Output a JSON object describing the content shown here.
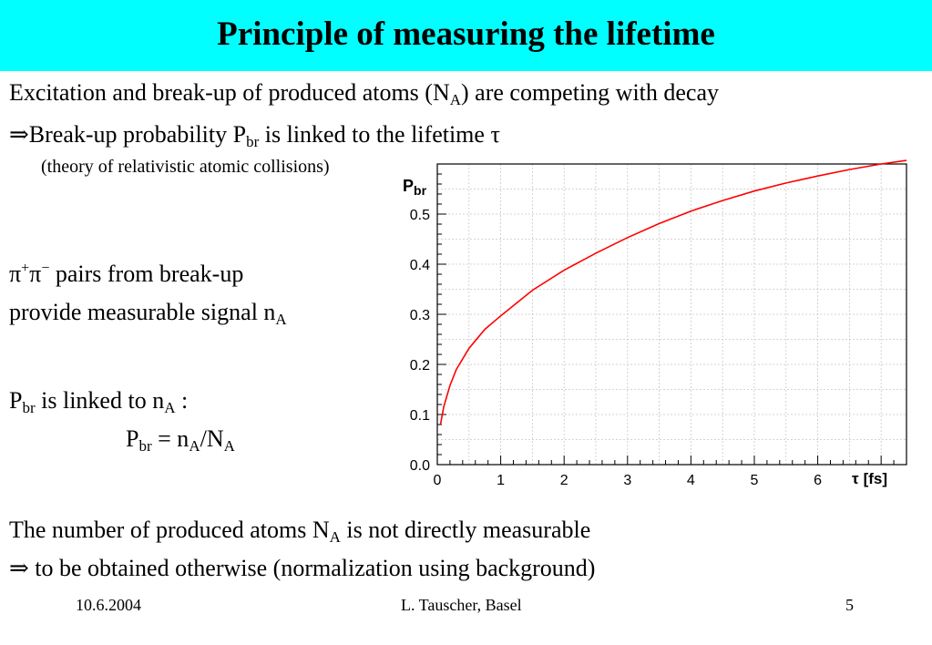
{
  "slide": {
    "title": "Principle of measuring the lifetime",
    "line1": {
      "a": "Excitation and break-up of produced atoms (N",
      "sub": "A",
      "b": ") are competing with decay"
    },
    "line2": {
      "arrow": "⇒",
      "a": "Break-up probability P",
      "sub": "br",
      "b": " is linked to the lifetime ",
      "tau": "τ"
    },
    "line3": "(theory of relativistic atomic collisions)",
    "line4": {
      "pi1": "π",
      "sup1": "+",
      "pi2": "π",
      "sup2": "−",
      "b": " pairs from break-up"
    },
    "line5": {
      "a": "provide measurable signal n",
      "sub": "A"
    },
    "line6": {
      "a": "P",
      "sub1": "br",
      "b": " is linked to n",
      "sub2": "A",
      "c": " :"
    },
    "line7": {
      "a": "P",
      "sub1": "br",
      "b": " = n",
      "sub2": "A",
      "c": "/N",
      "sub3": "A"
    },
    "line8": {
      "a": "The number of produced atoms N",
      "sub": "A",
      "b": " is not directly measurable"
    },
    "line9": {
      "arrow": "⇒",
      "a": " to be obtained otherwise (normalization using background)"
    }
  },
  "footer": {
    "date": "10.6.2004",
    "author": "L. Tauscher, Basel",
    "page": "5"
  },
  "chart_data": {
    "type": "line",
    "ylabel_main": "P",
    "ylabel_sub": "br",
    "xlabel_symbol": "τ",
    "xlabel_unit": "[fs]",
    "xlim": [
      0,
      7.4
    ],
    "ylim": [
      0,
      0.6
    ],
    "xticks": [
      "0",
      "1",
      "2",
      "3",
      "4",
      "5",
      "6"
    ],
    "yticks": [
      "0.0",
      "0.1",
      "0.2",
      "0.3",
      "0.4",
      "0.5"
    ],
    "grid": true,
    "line_color": "#ff0000",
    "series": [
      {
        "x": [
          0.05,
          0.1,
          0.2,
          0.3,
          0.5,
          0.75,
          1.0,
          1.5,
          2.0,
          2.5,
          3.0,
          3.5,
          4.0,
          4.5,
          5.0,
          5.5,
          6.0,
          6.5,
          7.0,
          7.4
        ],
        "y": [
          0.08,
          0.115,
          0.158,
          0.19,
          0.232,
          0.27,
          0.297,
          0.348,
          0.388,
          0.422,
          0.453,
          0.481,
          0.506,
          0.527,
          0.546,
          0.562,
          0.576,
          0.589,
          0.6,
          0.607
        ]
      }
    ]
  }
}
